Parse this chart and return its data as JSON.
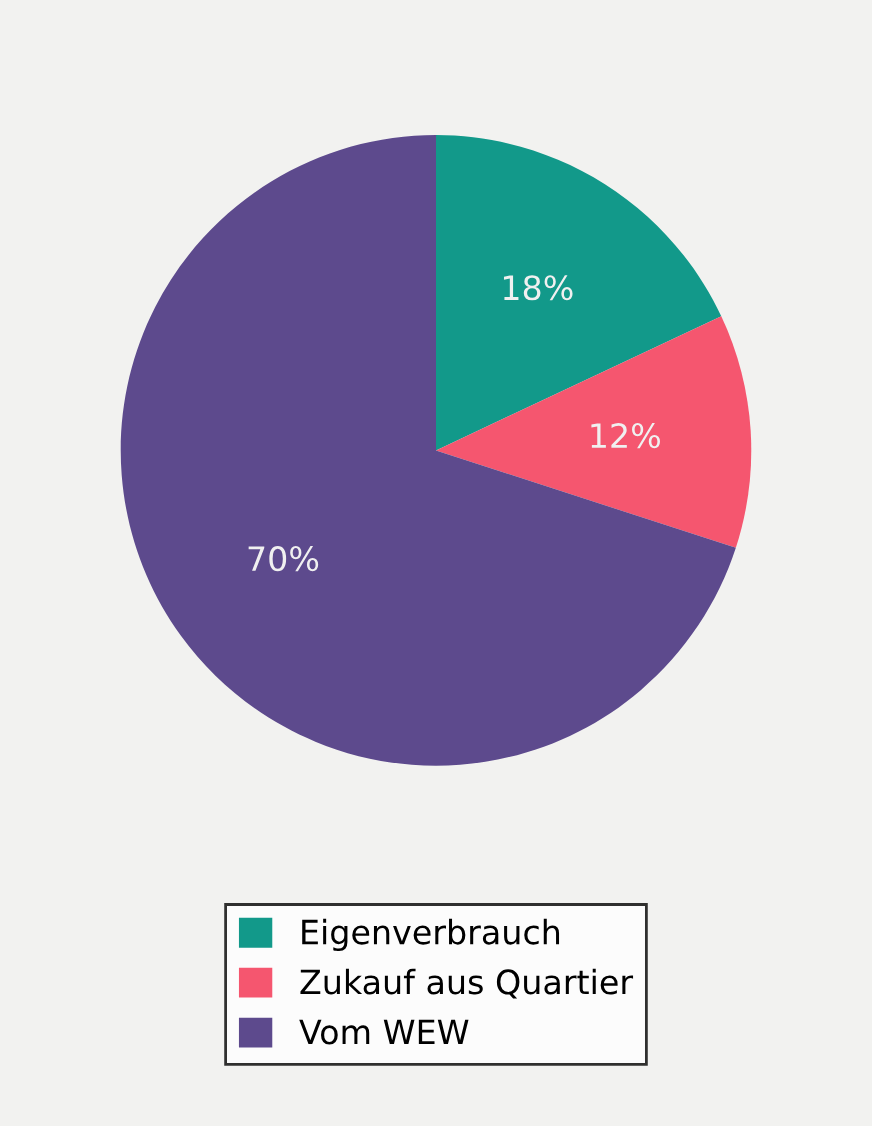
{
  "chart_data": {
    "type": "pie",
    "categories": [
      "Eigenverbrauch",
      "Zukauf aus Quartier",
      "Vom WEW"
    ],
    "values": [
      18,
      12,
      70
    ],
    "colors": [
      "#12998a",
      "#f5566f",
      "#5d4a8d"
    ],
    "value_labels": [
      "18%",
      "12%",
      "70%"
    ],
    "legend": "bottom"
  }
}
